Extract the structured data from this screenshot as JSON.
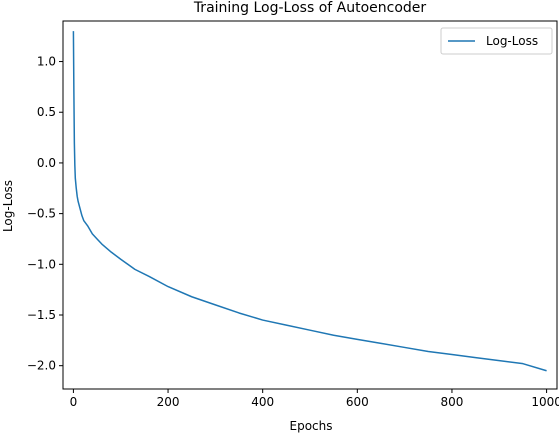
{
  "chart_data": {
    "type": "line",
    "title": "Training Log-Loss of Autoencoder",
    "xlabel": "Epochs",
    "ylabel": "Log-Loss",
    "xlim": [
      -22,
      1022
    ],
    "ylim": [
      -2.23,
      1.4
    ],
    "xticks": [
      0,
      200,
      400,
      600,
      800,
      1000
    ],
    "xtick_labels": [
      "0",
      "200",
      "400",
      "600",
      "800",
      "1000"
    ],
    "yticks": [
      -2.0,
      -1.5,
      -1.0,
      -0.5,
      0.0,
      0.5,
      1.0
    ],
    "ytick_labels": [
      "−2.0",
      "−1.5",
      "−1.0",
      "−0.5",
      "0.0",
      "0.5",
      "1.0"
    ],
    "grid": false,
    "legend_position": "top-right",
    "series": [
      {
        "name": "Log-Loss",
        "color": "#1f77b4",
        "x": [
          0,
          1,
          2,
          3,
          4,
          6,
          8,
          10,
          14,
          18,
          22,
          30,
          40,
          50,
          60,
          80,
          100,
          130,
          160,
          200,
          250,
          300,
          350,
          400,
          450,
          500,
          550,
          600,
          650,
          700,
          750,
          800,
          850,
          900,
          950,
          1000
        ],
        "y": [
          1.3,
          0.7,
          0.2,
          -0.02,
          -0.15,
          -0.25,
          -0.33,
          -0.38,
          -0.45,
          -0.52,
          -0.57,
          -0.62,
          -0.7,
          -0.75,
          -0.8,
          -0.88,
          -0.95,
          -1.05,
          -1.12,
          -1.22,
          -1.32,
          -1.4,
          -1.48,
          -1.55,
          -1.6,
          -1.65,
          -1.7,
          -1.74,
          -1.78,
          -1.82,
          -1.86,
          -1.89,
          -1.92,
          -1.95,
          -1.98,
          -2.05
        ]
      }
    ]
  }
}
